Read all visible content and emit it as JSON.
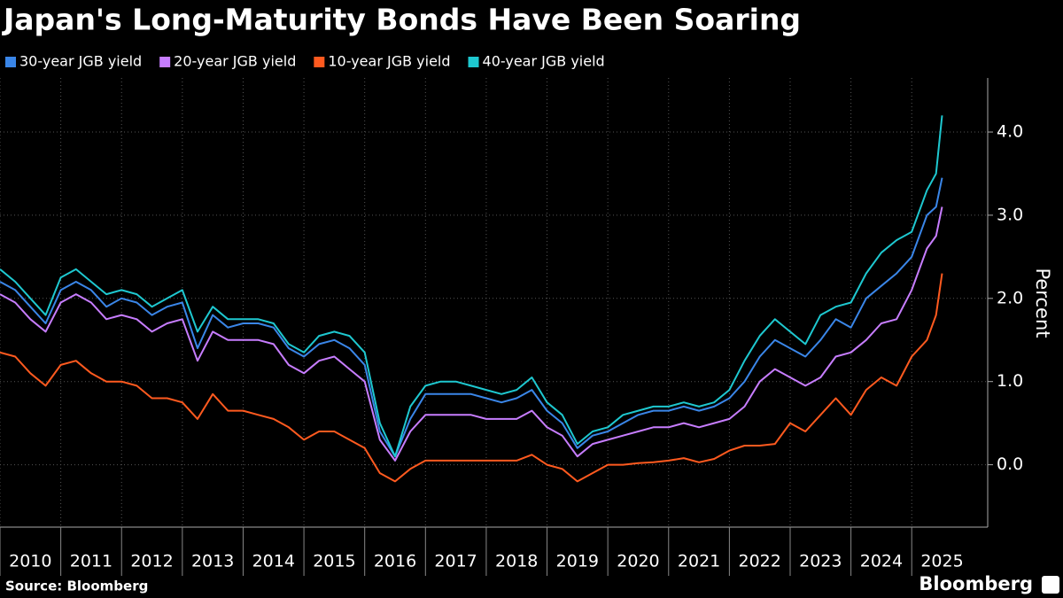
{
  "chart_data": {
    "type": "line",
    "title": "Japan's Long-Maturity Bonds Have Been Soaring",
    "y_label": "Percent",
    "source": "Source: Bloomberg",
    "brand": "Bloomberg",
    "x": [
      2010,
      2010.25,
      2010.5,
      2010.75,
      2011,
      2011.25,
      2011.5,
      2011.75,
      2012,
      2012.25,
      2012.5,
      2012.75,
      2013,
      2013.25,
      2013.5,
      2013.75,
      2014,
      2014.25,
      2014.5,
      2014.75,
      2015,
      2015.25,
      2015.5,
      2015.75,
      2016,
      2016.25,
      2016.5,
      2016.75,
      2017,
      2017.25,
      2017.5,
      2017.75,
      2018,
      2018.25,
      2018.5,
      2018.75,
      2019,
      2019.25,
      2019.5,
      2019.75,
      2020,
      2020.25,
      2020.5,
      2020.75,
      2021,
      2021.25,
      2021.5,
      2021.75,
      2022,
      2022.25,
      2022.5,
      2022.75,
      2023,
      2023.25,
      2023.5,
      2023.75,
      2024,
      2024.25,
      2024.5,
      2024.75,
      2025,
      2025.25,
      2025.4,
      2025.5
    ],
    "series": [
      {
        "name": "30-year JGB yield",
        "color": "#3a86e8",
        "values": [
          2.2,
          2.1,
          1.9,
          1.7,
          2.1,
          2.2,
          2.1,
          1.9,
          2.0,
          1.95,
          1.8,
          1.9,
          1.95,
          1.4,
          1.8,
          1.65,
          1.7,
          1.7,
          1.65,
          1.4,
          1.3,
          1.45,
          1.5,
          1.4,
          1.2,
          0.4,
          0.1,
          0.55,
          0.85,
          0.85,
          0.85,
          0.85,
          0.8,
          0.75,
          0.8,
          0.9,
          0.65,
          0.5,
          0.2,
          0.35,
          0.4,
          0.5,
          0.6,
          0.65,
          0.65,
          0.7,
          0.65,
          0.7,
          0.8,
          1.0,
          1.3,
          1.5,
          1.4,
          1.3,
          1.5,
          1.75,
          1.65,
          2.0,
          2.15,
          2.3,
          2.5,
          3.0,
          3.1,
          3.45
        ]
      },
      {
        "name": "20-year JGB yield",
        "color": "#c77dff",
        "values": [
          2.05,
          1.95,
          1.75,
          1.6,
          1.95,
          2.05,
          1.95,
          1.75,
          1.8,
          1.75,
          1.6,
          1.7,
          1.75,
          1.25,
          1.6,
          1.5,
          1.5,
          1.5,
          1.45,
          1.2,
          1.1,
          1.25,
          1.3,
          1.15,
          1.0,
          0.3,
          0.05,
          0.4,
          0.6,
          0.6,
          0.6,
          0.6,
          0.55,
          0.55,
          0.55,
          0.65,
          0.45,
          0.35,
          0.1,
          0.25,
          0.3,
          0.35,
          0.4,
          0.45,
          0.45,
          0.5,
          0.45,
          0.5,
          0.55,
          0.7,
          1.0,
          1.15,
          1.05,
          0.95,
          1.05,
          1.3,
          1.35,
          1.5,
          1.7,
          1.75,
          2.1,
          2.6,
          2.75,
          3.1
        ]
      },
      {
        "name": "10-year JGB yield",
        "color": "#ff5a1f",
        "values": [
          1.35,
          1.3,
          1.1,
          0.95,
          1.2,
          1.25,
          1.1,
          1.0,
          1.0,
          0.95,
          0.8,
          0.8,
          0.75,
          0.55,
          0.85,
          0.65,
          0.65,
          0.6,
          0.55,
          0.45,
          0.3,
          0.4,
          0.4,
          0.3,
          0.2,
          -0.1,
          -0.2,
          -0.05,
          0.05,
          0.05,
          0.05,
          0.05,
          0.05,
          0.05,
          0.05,
          0.12,
          0.0,
          -0.05,
          -0.2,
          -0.1,
          0.0,
          0.0,
          0.02,
          0.03,
          0.05,
          0.08,
          0.03,
          0.07,
          0.17,
          0.23,
          0.23,
          0.25,
          0.5,
          0.4,
          0.6,
          0.8,
          0.6,
          0.9,
          1.05,
          0.95,
          1.3,
          1.5,
          1.8,
          2.3
        ]
      },
      {
        "name": "40-year JGB yield",
        "color": "#1ec8d0",
        "values": [
          2.35,
          2.2,
          2.0,
          1.8,
          2.25,
          2.35,
          2.2,
          2.05,
          2.1,
          2.05,
          1.9,
          2.0,
          2.1,
          1.6,
          1.9,
          1.75,
          1.75,
          1.75,
          1.7,
          1.45,
          1.35,
          1.55,
          1.6,
          1.55,
          1.35,
          0.5,
          0.1,
          0.7,
          0.95,
          1.0,
          1.0,
          0.95,
          0.9,
          0.85,
          0.9,
          1.05,
          0.75,
          0.6,
          0.25,
          0.4,
          0.45,
          0.6,
          0.65,
          0.7,
          0.7,
          0.75,
          0.7,
          0.75,
          0.9,
          1.25,
          1.55,
          1.75,
          1.6,
          1.45,
          1.8,
          1.9,
          1.95,
          2.3,
          2.55,
          2.7,
          2.8,
          3.3,
          3.5,
          4.2
        ]
      }
    ],
    "xlim": [
      2010,
      2026.25
    ],
    "xticks": [
      2010,
      2011,
      2012,
      2013,
      2014,
      2015,
      2016,
      2017,
      2018,
      2019,
      2020,
      2021,
      2022,
      2023,
      2024,
      2025
    ],
    "ylim": [
      -0.75,
      4.65
    ],
    "yticks": [
      {
        "value": 0,
        "label": "0.0"
      },
      {
        "value": 1,
        "label": "1.0"
      },
      {
        "value": 2,
        "label": "2.0"
      },
      {
        "value": 3,
        "label": "3.0"
      },
      {
        "value": 4,
        "label": "4.0"
      }
    ],
    "grid": true,
    "legend": "top-left"
  }
}
